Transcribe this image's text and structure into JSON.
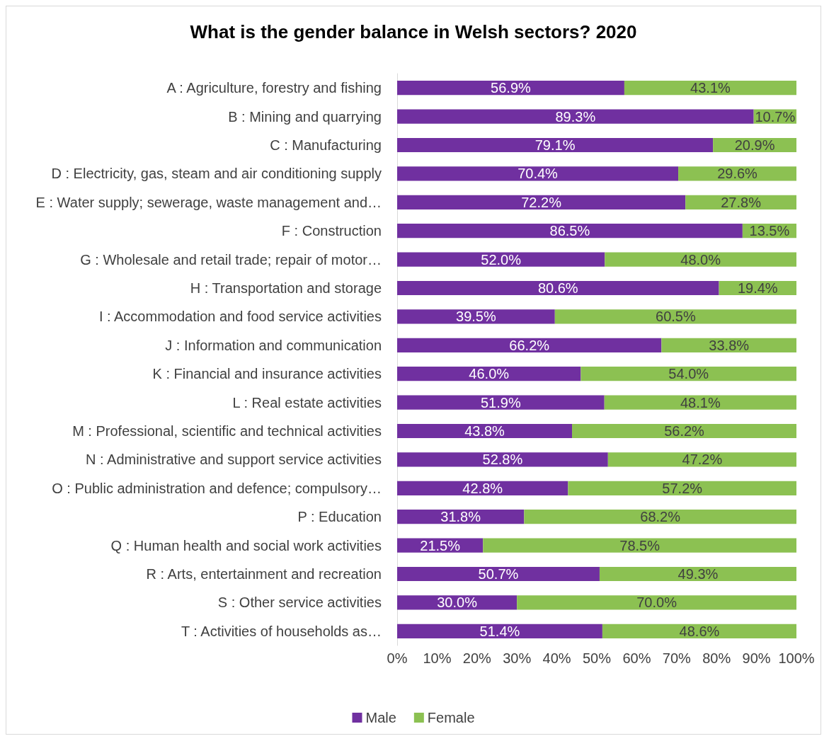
{
  "chart_data": {
    "type": "bar",
    "orientation": "horizontal",
    "stacked": true,
    "title": "What is the gender balance in Welsh sectors? 2020",
    "categories": [
      "A : Agriculture, forestry and fishing",
      "B : Mining and quarrying",
      "C : Manufacturing",
      "D : Electricity, gas, steam and air conditioning supply",
      "E : Water supply; sewerage, waste management and…",
      "F : Construction",
      "G : Wholesale and retail trade; repair of motor…",
      "H : Transportation and storage",
      "I : Accommodation and food service activities",
      "J : Information and communication",
      "K : Financial and insurance activities",
      "L : Real estate activities",
      "M : Professional, scientific and technical activities",
      "N : Administrative and support service activities",
      "O : Public administration and defence; compulsory…",
      "P : Education",
      "Q : Human health and social work activities",
      "R : Arts, entertainment and recreation",
      "S : Other service activities",
      "T : Activities of households as…"
    ],
    "series": [
      {
        "name": "Male",
        "color": "#7030a0",
        "values": [
          56.9,
          89.3,
          79.1,
          70.4,
          72.2,
          86.5,
          52.0,
          80.6,
          39.5,
          66.2,
          46.0,
          51.9,
          43.8,
          52.8,
          42.8,
          31.8,
          21.5,
          50.7,
          30.0,
          51.4
        ],
        "value_labels": [
          "56.9%",
          "89.3%",
          "79.1%",
          "70.4%",
          "72.2%",
          "86.5%",
          "52.0%",
          "80.6%",
          "39.5%",
          "66.2%",
          "46.0%",
          "51.9%",
          "43.8%",
          "52.8%",
          "42.8%",
          "31.8%",
          "21.5%",
          "50.7%",
          "30.0%",
          "51.4%"
        ]
      },
      {
        "name": "Female",
        "color": "#8cc152",
        "values": [
          43.1,
          10.7,
          20.9,
          29.6,
          27.8,
          13.5,
          48.0,
          19.4,
          60.5,
          33.8,
          54.0,
          48.1,
          56.2,
          47.2,
          57.2,
          68.2,
          78.5,
          49.3,
          70.0,
          48.6
        ],
        "value_labels": [
          "43.1%",
          "10.7%",
          "20.9%",
          "29.6%",
          "27.8%",
          "13.5%",
          "48.0%",
          "19.4%",
          "60.5%",
          "33.8%",
          "54.0%",
          "48.1%",
          "56.2%",
          "47.2%",
          "57.2%",
          "68.2%",
          "78.5%",
          "49.3%",
          "70.0%",
          "48.6%"
        ]
      }
    ],
    "xlim": [
      0,
      100
    ],
    "xticks": [
      {
        "value": 0,
        "label": "0%"
      },
      {
        "value": 10,
        "label": "10%"
      },
      {
        "value": 20,
        "label": "20%"
      },
      {
        "value": 30,
        "label": "30%"
      },
      {
        "value": 40,
        "label": "40%"
      },
      {
        "value": 50,
        "label": "50%"
      },
      {
        "value": 60,
        "label": "60%"
      },
      {
        "value": 70,
        "label": "70%"
      },
      {
        "value": 80,
        "label": "80%"
      },
      {
        "value": 90,
        "label": "90%"
      },
      {
        "value": 100,
        "label": "100%"
      }
    ],
    "grid": false,
    "legend": "bottom"
  }
}
